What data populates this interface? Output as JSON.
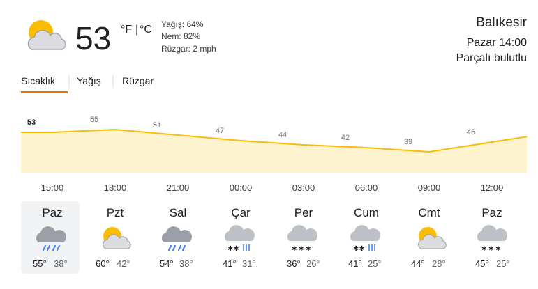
{
  "current": {
    "temp": "53",
    "unit_f": "°F",
    "separator": "|",
    "unit_c": "°C",
    "precip": "Yağış: 64%",
    "humidity": "Nem: 82%",
    "wind": "Rüzgar: 2 mph"
  },
  "location": {
    "name": "Balıkesir",
    "time": "Pazar 14:00",
    "condition": "Parçalı bulutlu"
  },
  "tabs": [
    "Sıcaklık",
    "Yağış",
    "Rüzgar"
  ],
  "chart_data": {
    "type": "area",
    "categories": [
      "15:00",
      "18:00",
      "21:00",
      "00:00",
      "03:00",
      "06:00",
      "09:00",
      "12:00"
    ],
    "values": [
      53,
      55,
      51,
      47,
      44,
      42,
      39,
      46
    ],
    "color": "#fbbc04"
  },
  "forecast": [
    {
      "day": "Paz",
      "high": "55°",
      "low": "38°"
    },
    {
      "day": "Pzt",
      "high": "60°",
      "low": "42°"
    },
    {
      "day": "Sal",
      "high": "54°",
      "low": "38°"
    },
    {
      "day": "Çar",
      "high": "41°",
      "low": "31°"
    },
    {
      "day": "Per",
      "high": "36°",
      "low": "26°"
    },
    {
      "day": "Cum",
      "high": "41°",
      "low": "25°"
    },
    {
      "day": "Cmt",
      "high": "44°",
      "low": "28°"
    },
    {
      "day": "Paz",
      "high": "45°",
      "low": "25°"
    }
  ]
}
